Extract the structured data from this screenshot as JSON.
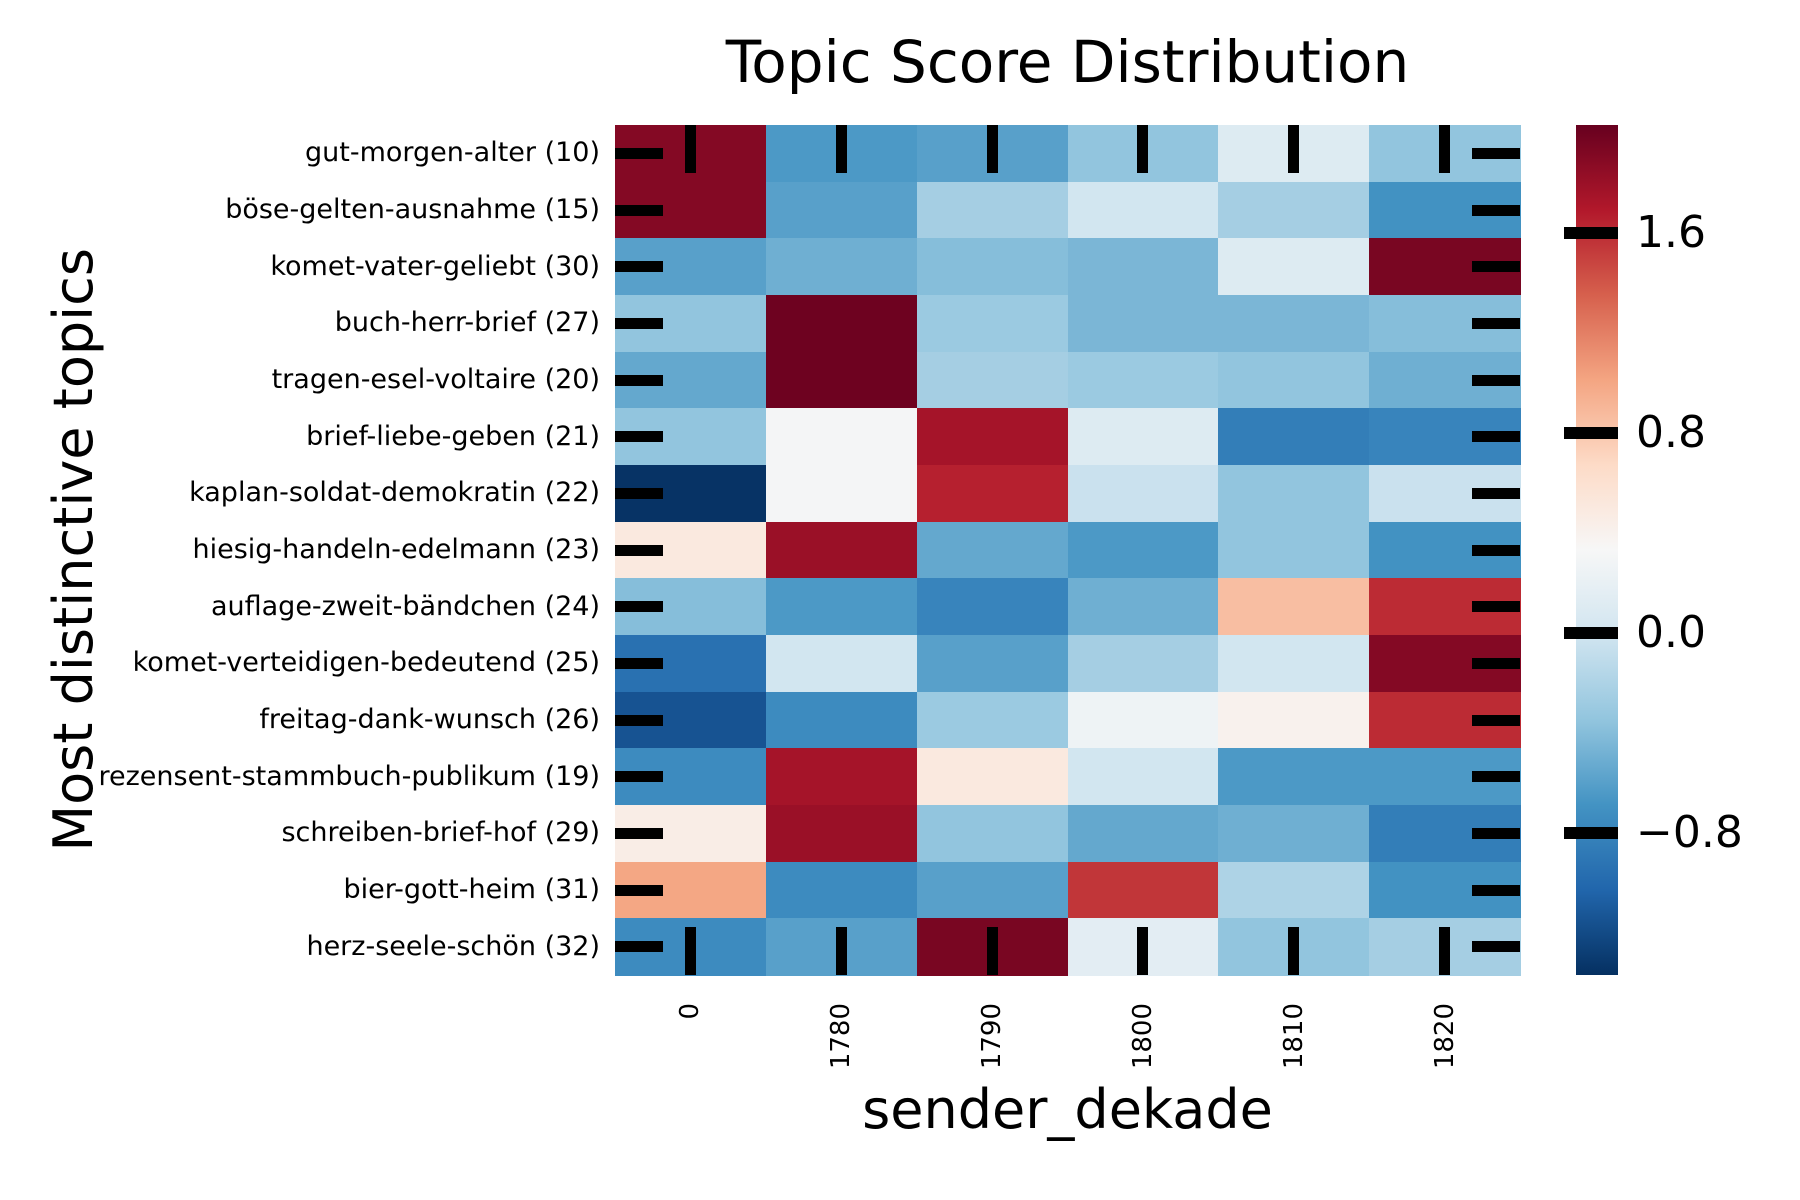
{
  "figure": {
    "background": "#ffffff",
    "text_color": "#000000"
  },
  "chart_data": {
    "type": "heatmap",
    "title": "Topic Score Distribution",
    "xlabel": "sender_dekade",
    "ylabel": "Most distinctive topics",
    "x_tick_labels": [
      "0",
      "1780",
      "1790",
      "1800",
      "1810",
      "1820"
    ],
    "y_tick_labels": [
      "gut-morgen-alter (10)",
      "böse-gelten-ausnahme (15)",
      "komet-vater-geliebt (30)",
      "buch-herr-brief (27)",
      "tragen-esel-voltaire (20)",
      "brief-liebe-geben (21)",
      "kaplan-soldat-demokratin (22)",
      "hiesig-handeln-edelmann (23)",
      "auflage-zweit-bändchen (24)",
      "komet-verteidigen-bedeutend (25)",
      "freitag-dank-wunsch (26)",
      "rezensent-stammbuch-publikum (19)",
      "schreiben-brief-hof (29)",
      "bier-gott-heim (31)",
      "herz-seele-schön (32)"
    ],
    "values": [
      [
        1.9,
        -0.65,
        -0.6,
        -0.35,
        0.1,
        -0.35
      ],
      [
        1.9,
        -0.6,
        -0.25,
        0.0,
        -0.25,
        -0.7
      ],
      [
        -0.6,
        -0.5,
        -0.4,
        -0.45,
        0.1,
        1.95
      ],
      [
        -0.35,
        2.0,
        -0.3,
        -0.45,
        -0.45,
        -0.4
      ],
      [
        -0.55,
        2.0,
        -0.25,
        -0.3,
        -0.35,
        -0.5
      ],
      [
        -0.35,
        0.3,
        1.75,
        0.1,
        -0.85,
        -0.8
      ],
      [
        -1.35,
        0.3,
        1.65,
        -0.05,
        -0.35,
        -0.05
      ],
      [
        0.5,
        1.8,
        -0.55,
        -0.65,
        -0.35,
        -0.7
      ],
      [
        -0.4,
        -0.65,
        -0.8,
        -0.5,
        0.85,
        1.6
      ],
      [
        -0.95,
        0.0,
        -0.6,
        -0.25,
        0.0,
        1.9
      ],
      [
        -1.15,
        -0.75,
        -0.3,
        0.25,
        0.4,
        1.6
      ],
      [
        -0.75,
        1.75,
        0.5,
        0.0,
        -0.65,
        -0.65
      ],
      [
        0.45,
        1.8,
        -0.35,
        -0.55,
        -0.5,
        -0.85
      ],
      [
        1.0,
        -0.75,
        -0.6,
        1.55,
        -0.2,
        -0.7
      ],
      [
        -0.75,
        -0.6,
        1.95,
        0.15,
        -0.35,
        -0.25
      ]
    ],
    "vmin": -1.37,
    "vmax": 2.03,
    "colormap_name": "RdBu_r",
    "colormap_stops_low_to_high": [
      "#053061",
      "#2166ac",
      "#4393c3",
      "#92c5de",
      "#d1e5f0",
      "#f7f7f7",
      "#fddbc7",
      "#f4a582",
      "#d6604d",
      "#b2182b",
      "#67001f"
    ],
    "tick_color": "#000000",
    "grid": false,
    "legend_position": "right-colorbar",
    "colorbar": {
      "tick_values": [
        1.6,
        0.8,
        0.0,
        -0.8
      ],
      "tick_labels": [
        "1.6",
        "0.8",
        "0.0",
        "−0.8"
      ]
    }
  }
}
